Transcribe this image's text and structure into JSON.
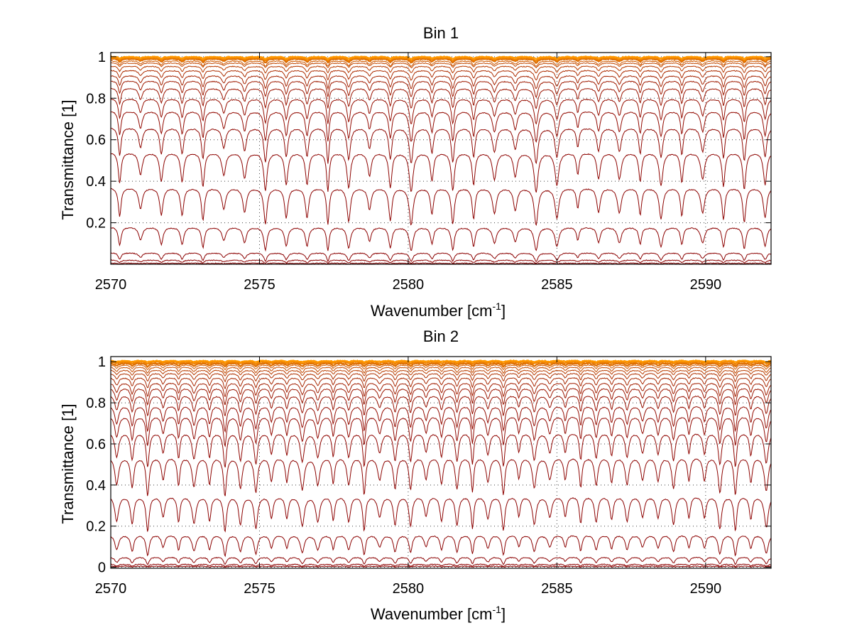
{
  "chart_data": [
    {
      "type": "line",
      "title": "Bin 1",
      "xlabel": "Wavenumber [cm",
      "xlabel_sup": "-1",
      "xlabel_close": "]",
      "ylabel": "Transmittance [1]",
      "xlim": [
        2570,
        2592.2
      ],
      "ylim": [
        0,
        1.02
      ],
      "xticks": [
        2570,
        2575,
        2580,
        2585,
        2590
      ],
      "xtick_labels": [
        "2570",
        "2575",
        "2580",
        "2585",
        "2590"
      ],
      "yticks": [
        0.2,
        0.4,
        0.6,
        0.8,
        1
      ],
      "ytick_labels": [
        "0.2",
        "0.4",
        "0.6",
        "0.8",
        "1"
      ],
      "grid": true,
      "line_spacing_cm": 0.7,
      "line_phase": 2570.3,
      "curve_baselines": [
        0.005,
        0.02,
        0.055,
        0.18,
        0.37,
        0.54,
        0.66,
        0.74,
        0.8,
        0.85,
        0.885,
        0.91,
        0.935,
        0.955,
        0.97,
        0.98,
        0.99,
        0.995,
        1.0
      ],
      "curve_color_dark": "#8b0000",
      "curve_color_light": "#ff9900"
    },
    {
      "type": "line",
      "title": "Bin 2",
      "xlabel": "Wavenumber [cm",
      "xlabel_sup": "-1",
      "xlabel_close": "]",
      "ylabel": "Transmittance [1]",
      "xlim": [
        2570,
        2592.2
      ],
      "ylim": [
        -0.005,
        1.025
      ],
      "xticks": [
        2570,
        2575,
        2580,
        2585,
        2590
      ],
      "xtick_labels": [
        "2570",
        "2575",
        "2580",
        "2585",
        "2590"
      ],
      "yticks": [
        0,
        0.2,
        0.4,
        0.6,
        0.8,
        1
      ],
      "ytick_labels": [
        "0",
        "0.2",
        "0.4",
        "0.6",
        "0.8",
        "1"
      ],
      "grid": true,
      "line_spacing_cm": 0.52,
      "line_phase": 2570.2,
      "curve_baselines": [
        0.005,
        0.015,
        0.05,
        0.16,
        0.35,
        0.54,
        0.66,
        0.74,
        0.79,
        0.84,
        0.875,
        0.9,
        0.925,
        0.945,
        0.96,
        0.975,
        0.985,
        0.993,
        1.0,
        1.005
      ],
      "curve_color_dark": "#8b0000",
      "curve_color_light": "#ff9900"
    }
  ]
}
